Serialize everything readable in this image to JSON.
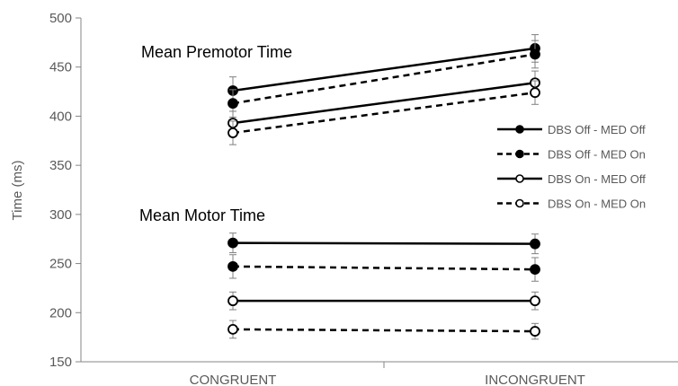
{
  "chart_data": {
    "type": "line",
    "categories": [
      "CONGRUENT",
      "INCONGRUENT"
    ],
    "ylabel": "Time (ms)",
    "xlabel": "",
    "ylim": [
      150,
      500
    ],
    "yticks": [
      150,
      200,
      250,
      300,
      350,
      400,
      450,
      500
    ],
    "grid": false,
    "legend_position": "right",
    "annotations": [
      "Mean Premotor Time",
      "Mean Motor Time"
    ],
    "series": [
      {
        "name": "DBS Off - MED Off",
        "line": "solid",
        "marker": "filled",
        "group": "Mean Premotor Time",
        "values": [
          426,
          469
        ],
        "errors": [
          14,
          14
        ]
      },
      {
        "name": "DBS Off - MED On",
        "line": "dashed",
        "marker": "filled",
        "group": "Mean Premotor Time",
        "values": [
          413,
          463
        ],
        "errors": [
          14,
          14
        ]
      },
      {
        "name": "DBS On - MED Off",
        "line": "solid",
        "marker": "open",
        "group": "Mean Premotor Time",
        "values": [
          393,
          434
        ],
        "errors": [
          12,
          12
        ]
      },
      {
        "name": "DBS On - MED On",
        "line": "dashed",
        "marker": "open",
        "group": "Mean Premotor Time",
        "values": [
          383,
          424
        ],
        "errors": [
          12,
          12
        ]
      },
      {
        "name": "DBS Off - MED Off",
        "line": "solid",
        "marker": "filled",
        "group": "Mean Motor Time",
        "values": [
          271,
          270
        ],
        "errors": [
          10,
          10
        ]
      },
      {
        "name": "DBS Off - MED On",
        "line": "dashed",
        "marker": "filled",
        "group": "Mean Motor Time",
        "values": [
          247,
          244
        ],
        "errors": [
          12,
          12
        ]
      },
      {
        "name": "DBS On - MED Off",
        "line": "solid",
        "marker": "open",
        "group": "Mean Motor Time",
        "values": [
          212,
          212
        ],
        "errors": [
          9,
          9
        ]
      },
      {
        "name": "DBS On - MED On",
        "line": "dashed",
        "marker": "open",
        "group": "Mean Motor Time",
        "values": [
          183,
          181
        ],
        "errors": [
          9,
          8
        ]
      }
    ],
    "legend": [
      {
        "label": "DBS Off - MED Off",
        "line": "solid",
        "marker": "filled"
      },
      {
        "label": "DBS Off - MED On",
        "line": "dashed",
        "marker": "filled"
      },
      {
        "label": "DBS On - MED Off",
        "line": "solid",
        "marker": "open"
      },
      {
        "label": "DBS On - MED On",
        "line": "dashed",
        "marker": "open"
      }
    ],
    "colors": {
      "line": "#000000",
      "axis": "#868686",
      "text": "#595959",
      "errorbar": "#808080"
    }
  }
}
